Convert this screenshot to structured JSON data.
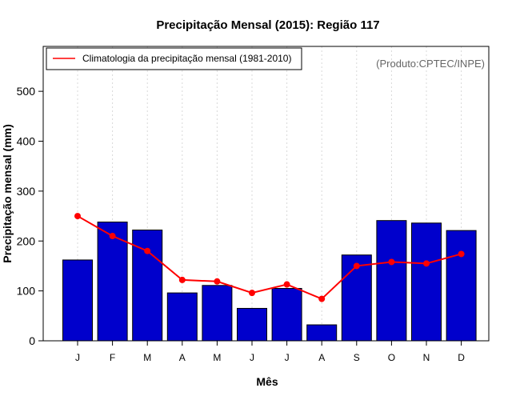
{
  "chart_data": {
    "type": "bar",
    "title": "Precipitação Mensal (2015): Região 117",
    "xlabel": "Mês",
    "ylabel": "Precipitação mensal (mm)",
    "categories": [
      "J",
      "F",
      "M",
      "A",
      "M",
      "J",
      "J",
      "A",
      "S",
      "O",
      "N",
      "D"
    ],
    "series": [
      {
        "name": "Precipitação mensal (2015)",
        "type": "bar",
        "color": "#0000cc",
        "values": [
          162,
          238,
          222,
          96,
          111,
          65,
          105,
          32,
          172,
          241,
          236,
          221
        ]
      },
      {
        "name": "Climatologia da precipitação mensal (1981-2010)",
        "type": "line",
        "color": "#ff0000",
        "values": [
          250,
          210,
          180,
          122,
          119,
          96,
          113,
          84,
          150,
          158,
          155,
          174
        ]
      }
    ],
    "ylim": [
      0,
      590
    ],
    "yticks": [
      0,
      100,
      200,
      300,
      400,
      500
    ],
    "grid": "vertical dashed",
    "legend": {
      "position": "top-left",
      "entries": [
        "Climatologia da precipitação mensal (1981-2010)"
      ]
    },
    "annotation": "(Produto:CPTEC/INPE)"
  }
}
